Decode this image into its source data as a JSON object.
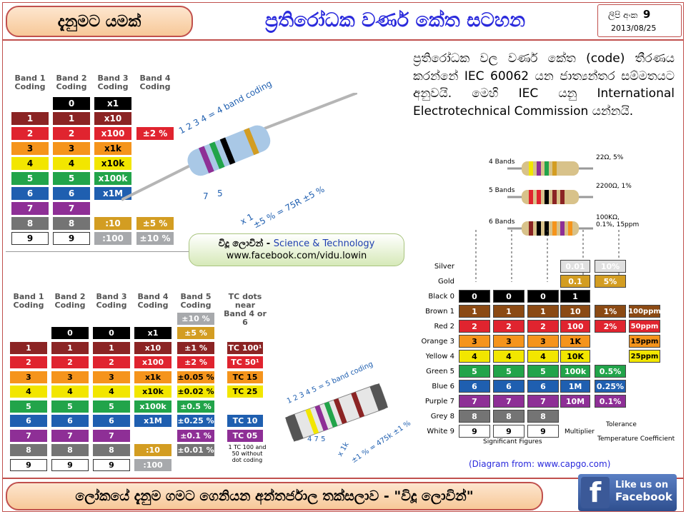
{
  "header": {
    "badge_left": "දැනුමට යමක්",
    "title": "ප්‍රතිරෝධක වර්ණ කේත සටහන",
    "issue_label": "ලිපි අංක",
    "issue_number": "9",
    "date": "2013/08/25"
  },
  "top_table": {
    "headers": [
      "Band 1\nCoding",
      "Band 2\nCoding",
      "Band 3\nCoding",
      "Band 4\nCoding"
    ],
    "rows": [
      {
        "c1": "",
        "c2": "0",
        "c3": "x1",
        "c4": "",
        "color": "#000000"
      },
      {
        "c1": "1",
        "c2": "1",
        "c3": "x10",
        "c4": "",
        "color": "#8b2424"
      },
      {
        "c1": "2",
        "c2": "2",
        "c3": "x100",
        "c4": "±2 %",
        "color": "#e0242f"
      },
      {
        "c1": "3",
        "c2": "3",
        "c3": "x1k",
        "c4": "",
        "color": "#f5941c"
      },
      {
        "c1": "4",
        "c2": "4",
        "c3": "x10k",
        "c4": "",
        "color": "#f2e600"
      },
      {
        "c1": "5",
        "c2": "5",
        "c3": "x100k",
        "c4": "",
        "color": "#22a44a"
      },
      {
        "c1": "6",
        "c2": "6",
        "c3": "x1M",
        "c4": "",
        "color": "#1f5fb0"
      },
      {
        "c1": "7",
        "c2": "7",
        "c3": "",
        "c4": "",
        "color": "#8e2f96"
      },
      {
        "c1": "8",
        "c2": "8",
        "c3": ":10",
        "c4": "±5 %",
        "color": "#747474"
      },
      {
        "c1": "9",
        "c2": "9",
        "c3": ":100",
        "c4": "±10 %",
        "color": "#ffffff"
      }
    ],
    "gold": "#d39d22",
    "silver": "#a7a9ac",
    "annotation_top": "1 2 3 4 = 4 band coding",
    "annotation_bottom": "±5 % = 75R ±5 %",
    "annotation_7": "7",
    "annotation_5": "5",
    "annotation_x1": "x 1"
  },
  "credit_card": {
    "line1_name": "විදූ ලොවින්",
    "line1_sep": " - ",
    "line1_topic": "Science & Technology",
    "line2": "www.facebook.com/vidu.lowin"
  },
  "paragraph": "ප්‍රතිරෝධක වල වර්ණ කේත (code) තීරණය කරන්නේ IEC 60062 යන ජාත්‍යන්තර සම්මතයට අනුවයි. මෙහි IEC යනු International Electrotechnical Commission යන්නයි.",
  "diagram": {
    "bands": [
      {
        "label": "4 Bands",
        "value": "22Ω, 5%"
      },
      {
        "label": "5 Bands",
        "value": "2200Ω, 1%"
      },
      {
        "label": "6 Bands",
        "value": "100KΩ,\n0.1%, 15ppm"
      }
    ],
    "row_labels": [
      "Silver",
      "Gold",
      "Black 0",
      "Brown 1",
      "Red 2",
      "Orange 3",
      "Yellow 4",
      "Green 5",
      "Blue 6",
      "Purple 7",
      "Grey 8",
      "White 9"
    ],
    "digits": [
      "0",
      "1",
      "2",
      "3",
      "4",
      "5",
      "6",
      "7",
      "8",
      "9"
    ],
    "multiplier": [
      "0.01",
      "0.1",
      "1",
      "10",
      "100",
      "1K",
      "10K",
      "100k",
      "1M",
      "10M"
    ],
    "tolerance": [
      "10%",
      "5%",
      "1%",
      "2%",
      "0.5%",
      "0.25%",
      "0.1%"
    ],
    "tempco": [
      "100ppm",
      "50ppm",
      "15ppm",
      "25ppm"
    ],
    "captions": {
      "significant": "Significant Figures",
      "multiplier": "Multiplier",
      "tolerance": "Tolerance",
      "tempco": "Temperature Coefficient"
    },
    "source": "(Diagram from: www.capgo.com)"
  },
  "bottom_table": {
    "headers": [
      "Band 1\nCoding",
      "Band 2\nCoding",
      "Band 3\nCoding",
      "Band 4\nCoding",
      "Band 5\nCoding",
      "TC dots near\nBand 4 or 6"
    ],
    "band5_top": [
      "±10 %",
      "±5 %"
    ],
    "rows": [
      {
        "c1": "",
        "c2": "0",
        "c3": "0",
        "c4": "x1",
        "c5": "",
        "tc": ""
      },
      {
        "c1": "1",
        "c2": "1",
        "c3": "1",
        "c4": "x10",
        "c5": "±1 %",
        "tc": "TC 100¹"
      },
      {
        "c1": "2",
        "c2": "2",
        "c3": "2",
        "c4": "x100",
        "c5": "±2 %",
        "tc": "TC 50¹"
      },
      {
        "c1": "3",
        "c2": "3",
        "c3": "3",
        "c4": "x1k",
        "c5": "±0.05 %",
        "tc": "TC 15"
      },
      {
        "c1": "4",
        "c2": "4",
        "c3": "4",
        "c4": "x10k",
        "c5": "±0.02 %",
        "tc": "TC 25"
      },
      {
        "c1": "5",
        "c2": "5",
        "c3": "5",
        "c4": "x100k",
        "c5": "±0.5 %",
        "tc": ""
      },
      {
        "c1": "6",
        "c2": "6",
        "c3": "6",
        "c4": "x1M",
        "c5": "±0.25 %",
        "tc": "TC 10"
      },
      {
        "c1": "7",
        "c2": "7",
        "c3": "7",
        "c4": "",
        "c5": "±0.1 %",
        "tc": "TC 05"
      },
      {
        "c1": "8",
        "c2": "8",
        "c3": "8",
        "c4": ":10",
        "c5": "±0.01 %",
        "tc": ""
      },
      {
        "c1": "9",
        "c2": "9",
        "c3": "9",
        "c4": ":100",
        "c5": "",
        "tc": ""
      }
    ],
    "tc_note": "1 TC 100 and\n50 without\ndot coding",
    "annotation_top": "1 2 3 4 5 = 5 band coding",
    "annotation_bottom": "±1 % = 475k ±1 %",
    "annotation_475": "4 7 5",
    "annotation_x1k": "x 1k"
  },
  "footer": {
    "text": "ලෝකයේ දැනුම ගමට ගෙනියන අන්තර්ජාල තක්සලාව - \"විදූ ලොවින්\"",
    "fb_letter": "f",
    "fb_line1": "Like us on",
    "fb_line2": "Facebook"
  }
}
